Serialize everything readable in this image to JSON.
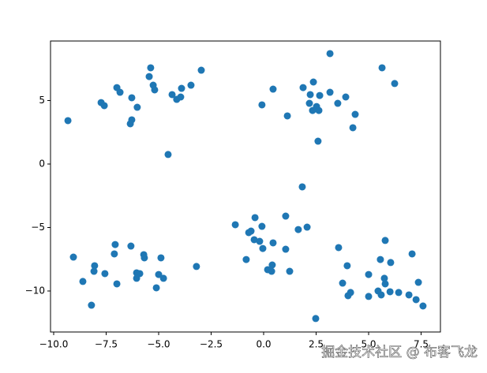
{
  "chart_data": {
    "type": "scatter",
    "color": "#1f77b4",
    "x": [
      -9.32,
      -4.55,
      -5.38,
      -5.45,
      -5.26,
      -5.19,
      -6.99,
      -6.84,
      -6.28,
      -7.74,
      -7.59,
      -6.02,
      -6.28,
      -6.35,
      -4.36,
      -4.14,
      -3.95,
      -3.91,
      -3.46,
      -2.97,
      3.16,
      5.64,
      6.24,
      2.37,
      1.88,
      0.45,
      2.22,
      2.67,
      3.16,
      3.91,
      3.53,
      2.18,
      -0.08,
      2.52,
      2.33,
      2.63,
      4.36,
      1.13,
      4.25,
      2.59,
      1.84,
      1.05,
      -1.35,
      -0.41,
      -0.08,
      -0.6,
      -0.71,
      1.65,
      2.07,
      -0.45,
      -0.19,
      0.45,
      -0.04,
      1.05,
      -0.83,
      0.41,
      0.19,
      0.38,
      1.24,
      2.48,
      -9.06,
      -7.07,
      -6.32,
      -7.11,
      -5.71,
      -5.68,
      -4.89,
      -8.05,
      -8.08,
      -7.56,
      -6.05,
      -5.9,
      -5.0,
      -4.77,
      -6.05,
      -8.61,
      -6.99,
      -5.11,
      -3.2,
      -8.2,
      3.57,
      5.79,
      7.07,
      5.56,
      6.05,
      3.98,
      5.0,
      5.75,
      3.76,
      5.79,
      7.37,
      5.45,
      6.02,
      6.43,
      4.14,
      4.02,
      5.0,
      5.6,
      6.92,
      7.26,
      7.59
    ],
    "values": [
      3.42,
      0.75,
      7.58,
      6.89,
      6.21,
      5.84,
      6.02,
      5.65,
      5.22,
      4.84,
      4.6,
      4.47,
      3.48,
      3.17,
      5.47,
      5.09,
      5.28,
      5.96,
      6.21,
      7.39,
      8.7,
      7.58,
      6.34,
      6.46,
      6.02,
      5.9,
      5.47,
      5.4,
      5.65,
      5.28,
      4.78,
      4.78,
      4.66,
      4.53,
      4.22,
      4.22,
      3.91,
      3.79,
      2.86,
      1.8,
      -1.8,
      -4.1,
      -4.78,
      -4.22,
      -4.91,
      -5.28,
      -5.4,
      -5.16,
      -4.97,
      -5.96,
      -6.09,
      -6.21,
      -6.65,
      -6.71,
      -7.52,
      -7.95,
      -8.32,
      -8.45,
      -8.45,
      -12.17,
      -7.33,
      -6.34,
      -6.46,
      -7.08,
      -7.14,
      -7.39,
      -7.39,
      -8.01,
      -8.45,
      -8.63,
      -8.57,
      -8.63,
      -8.7,
      -9.0,
      -9.0,
      -9.25,
      -9.44,
      -9.75,
      -8.07,
      -11.12,
      -6.58,
      -6.02,
      -7.08,
      -7.52,
      -7.76,
      -8.01,
      -8.7,
      -9.0,
      -9.38,
      -9.44,
      -9.32,
      -10.0,
      -10.06,
      -10.12,
      -10.12,
      -10.37,
      -10.43,
      -10.31,
      -10.31,
      -10.68,
      -11.18
    ],
    "xlim": [
      -10.15,
      8.42
    ],
    "ylim": [
      -13.23,
      9.69
    ],
    "xticks": [
      {
        "value": -10,
        "label": "−10.0"
      },
      {
        "value": -7.5,
        "label": "−7.5"
      },
      {
        "value": -5,
        "label": "−5.0"
      },
      {
        "value": -2.5,
        "label": "−2.5"
      },
      {
        "value": 0,
        "label": "0.0"
      },
      {
        "value": 2.5,
        "label": "2.5"
      },
      {
        "value": 5,
        "label": "5.0"
      },
      {
        "value": 7.5,
        "label": "7.5"
      }
    ],
    "yticks": [
      {
        "value": -10,
        "label": "−10"
      },
      {
        "value": -5,
        "label": "−5"
      },
      0,
      5
    ],
    "watermark": "掘金技术社区 @ 布客飞龙"
  }
}
